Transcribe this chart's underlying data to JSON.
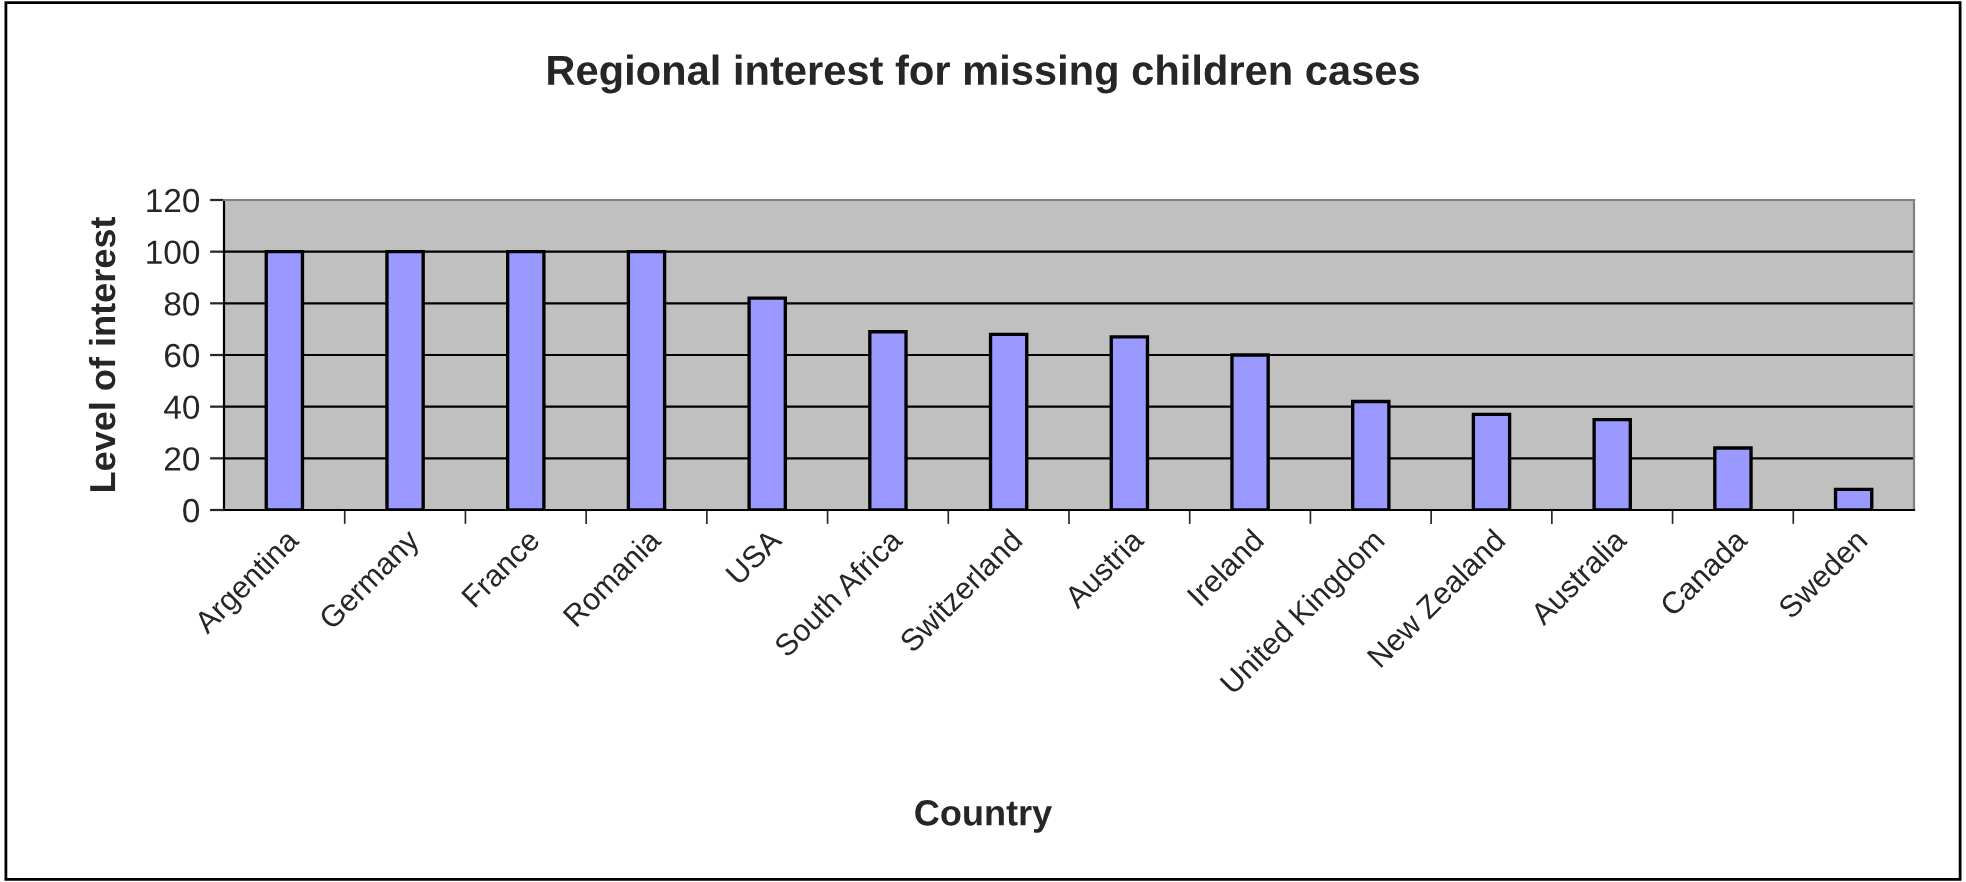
{
  "chart_data": {
    "type": "bar",
    "title": "Regional interest for missing children cases",
    "xlabel": "Country",
    "ylabel": "Level of interest",
    "categories": [
      "Argentina",
      "Germany",
      "France",
      "Romania",
      "USA",
      "South Africa",
      "Switzerland",
      "Austria",
      "Ireland",
      "United Kingdom",
      "New Zealand",
      "Australia",
      "Canada",
      "Sweden"
    ],
    "values": [
      100,
      100,
      100,
      100,
      82,
      69,
      68,
      67,
      60,
      42,
      37,
      35,
      24,
      8
    ],
    "color": "#9999ff",
    "ylim": [
      0,
      120
    ],
    "yticks": [
      0,
      20,
      40,
      60,
      80,
      100,
      120
    ],
    "grid": "y",
    "legend": false
  }
}
